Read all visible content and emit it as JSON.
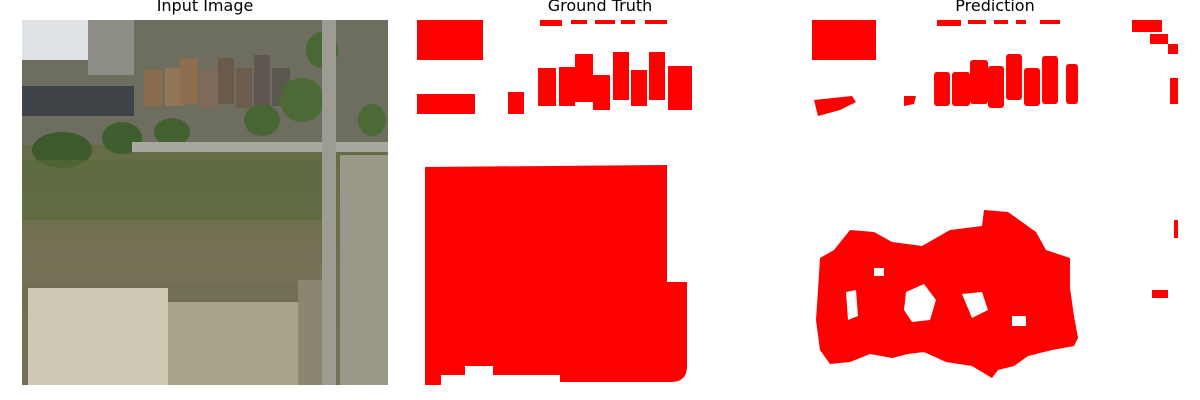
{
  "panels": [
    {
      "title": "Input Image"
    },
    {
      "title": "Ground Truth"
    },
    {
      "title": "Prediction"
    }
  ],
  "colors": {
    "mask": "#ff0000",
    "background": "#ffffff"
  }
}
